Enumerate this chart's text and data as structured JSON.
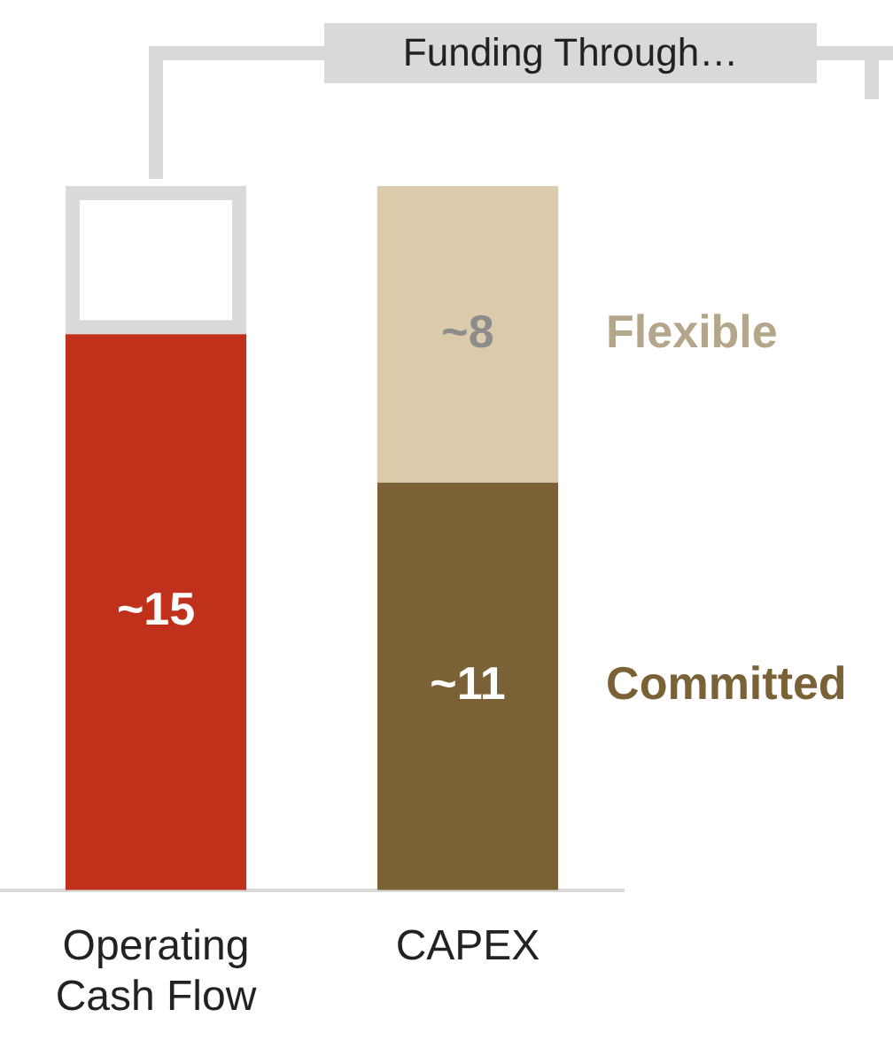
{
  "chart_data": {
    "type": "bar",
    "stacked": true,
    "categories": [
      "Operating Cash Flow",
      "CAPEX"
    ],
    "series": [
      {
        "color": "#bf311a",
        "values": [
          15,
          null
        ],
        "value_labels": [
          "~15",
          null
        ]
      },
      {
        "name": "Committed",
        "color": "#7a6136",
        "values": [
          null,
          11
        ],
        "value_labels": [
          null,
          "~11"
        ]
      },
      {
        "name": "Flexible",
        "color": "#dccbaa",
        "values": [
          null,
          8
        ],
        "value_labels": [
          null,
          "~8"
        ]
      },
      {
        "color": "#d9d9d9",
        "values": [
          4,
          null
        ],
        "value_labels": [
          null,
          null
        ]
      }
    ],
    "annotations": [
      "Funding Through…"
    ],
    "legend": false,
    "grid": false
  }
}
